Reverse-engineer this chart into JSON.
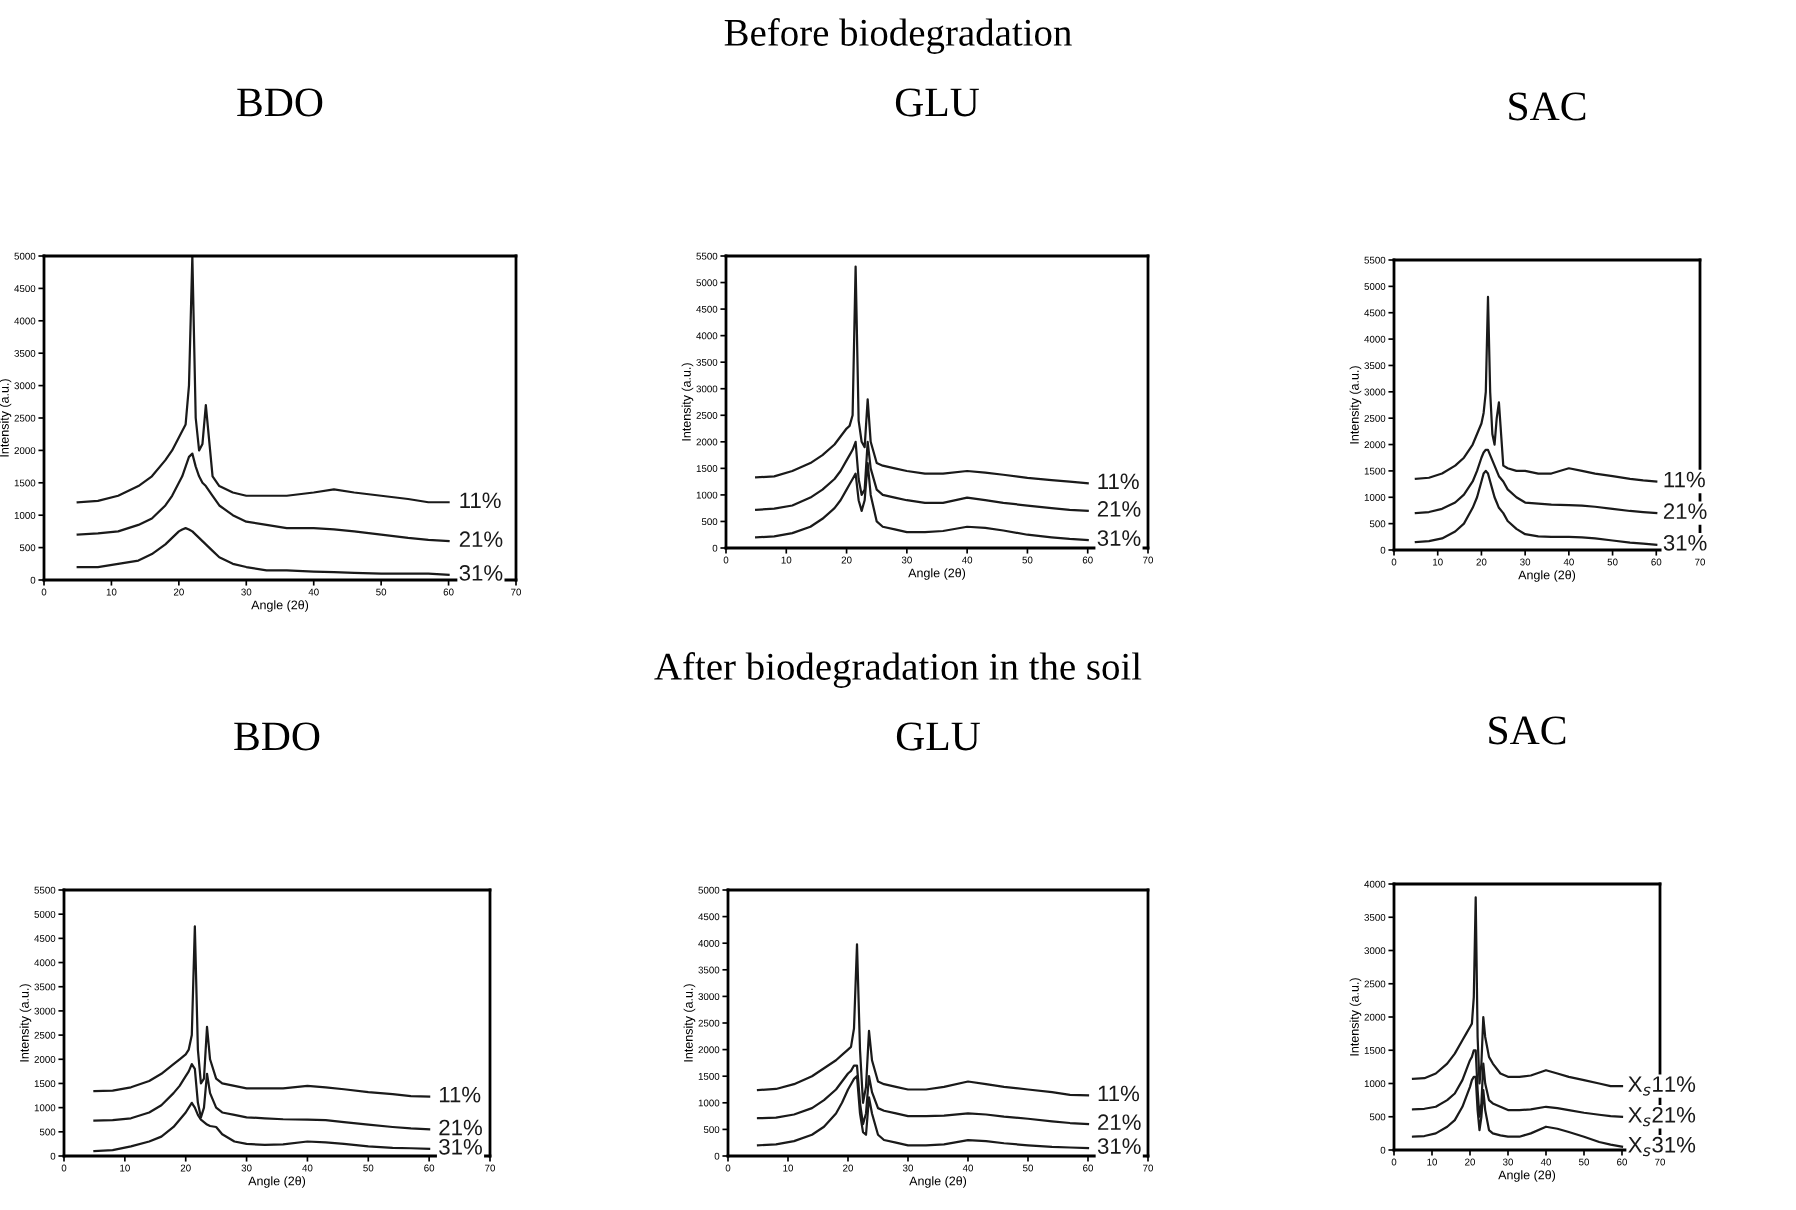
{
  "chart_data": [
    {
      "type": "line",
      "title": "BDO",
      "annotations": [
        "Before biodegradation"
      ],
      "xlabel": "Angle (2θ)",
      "ylabel": "Intensity (a.u.)",
      "xlim": [
        0,
        70
      ],
      "xticks": [
        0,
        10,
        20,
        30,
        40,
        50,
        60,
        70
      ],
      "ylim": [
        0,
        5000
      ],
      "yticks": [
        0,
        500,
        1000,
        1500,
        2000,
        2500,
        3000,
        3500,
        4000,
        4500,
        5000
      ],
      "x": [
        5,
        8,
        11,
        14,
        16,
        18,
        19,
        20,
        20.5,
        21,
        21.5,
        22,
        22.5,
        23,
        23.5,
        24,
        25,
        26,
        28,
        30,
        33,
        36,
        40,
        43,
        46,
        50,
        54,
        57,
        60
      ],
      "series": [
        {
          "name": "11%",
          "color": "#1a1a1a",
          "values": [
            1200,
            1220,
            1300,
            1450,
            1600,
            1850,
            2000,
            2200,
            2300,
            2400,
            3000,
            5000,
            2500,
            2000,
            2100,
            2700,
            1600,
            1450,
            1350,
            1300,
            1300,
            1300,
            1350,
            1400,
            1350,
            1300,
            1250,
            1200,
            1200
          ]
        },
        {
          "name": "21%",
          "color": "#1a1a1a",
          "values": [
            700,
            720,
            750,
            850,
            950,
            1150,
            1300,
            1500,
            1600,
            1750,
            1900,
            1950,
            1750,
            1600,
            1500,
            1450,
            1300,
            1150,
            1000,
            900,
            850,
            800,
            800,
            780,
            750,
            700,
            650,
            620,
            600
          ]
        },
        {
          "name": "31%",
          "color": "#1a1a1a",
          "values": [
            200,
            200,
            250,
            300,
            400,
            550,
            650,
            750,
            780,
            800,
            780,
            750,
            700,
            650,
            600,
            550,
            450,
            350,
            250,
            200,
            150,
            150,
            130,
            120,
            110,
            100,
            100,
            100,
            80
          ]
        }
      ]
    },
    {
      "type": "line",
      "title": "GLU",
      "xlabel": "Angle (2θ)",
      "ylabel": "Intensity (a.u.)",
      "xlim": [
        0,
        70
      ],
      "xticks": [
        0,
        10,
        20,
        30,
        40,
        50,
        60,
        70
      ],
      "ylim": [
        0,
        5500
      ],
      "yticks": [
        0,
        500,
        1000,
        1500,
        2000,
        2500,
        3000,
        3500,
        4000,
        4500,
        5000,
        5500
      ],
      "x": [
        5,
        8,
        11,
        14,
        16,
        18,
        19,
        20,
        20.5,
        21,
        21.5,
        22,
        22.5,
        23,
        23.5,
        24,
        25,
        26,
        28,
        30,
        33,
        36,
        40,
        43,
        46,
        50,
        54,
        57,
        60
      ],
      "series": [
        {
          "name": "11%",
          "color": "#1a1a1a",
          "values": [
            1330,
            1350,
            1450,
            1600,
            1750,
            1950,
            2100,
            2250,
            2300,
            2500,
            5300,
            2400,
            2000,
            1900,
            2800,
            2000,
            1600,
            1550,
            1500,
            1450,
            1400,
            1400,
            1450,
            1420,
            1380,
            1320,
            1280,
            1250,
            1220
          ]
        },
        {
          "name": "21%",
          "color": "#1a1a1a",
          "values": [
            720,
            740,
            800,
            950,
            1100,
            1300,
            1450,
            1650,
            1750,
            1850,
            2000,
            1300,
            1000,
            1100,
            2000,
            1500,
            1100,
            1000,
            950,
            900,
            850,
            850,
            950,
            900,
            850,
            800,
            750,
            720,
            700
          ]
        },
        {
          "name": "31%",
          "color": "#1a1a1a",
          "values": [
            200,
            220,
            280,
            400,
            550,
            750,
            900,
            1100,
            1200,
            1300,
            1400,
            900,
            700,
            900,
            1600,
            1000,
            500,
            400,
            350,
            300,
            300,
            320,
            400,
            380,
            330,
            250,
            200,
            170,
            150
          ]
        }
      ]
    },
    {
      "type": "line",
      "title": "SAC",
      "xlabel": "Angle (2θ)",
      "ylabel": "Intensity (a.u.)",
      "xlim": [
        0,
        70
      ],
      "xticks": [
        0,
        10,
        20,
        30,
        40,
        50,
        60,
        70
      ],
      "ylim": [
        0,
        5500
      ],
      "yticks": [
        0,
        500,
        1000,
        1500,
        2000,
        2500,
        3000,
        3500,
        4000,
        4500,
        5000,
        5500
      ],
      "x": [
        5,
        8,
        11,
        14,
        16,
        18,
        19,
        20,
        20.5,
        21,
        21.5,
        22,
        22.5,
        23,
        23.5,
        24,
        25,
        26,
        28,
        30,
        33,
        36,
        40,
        43,
        46,
        50,
        54,
        57,
        60
      ],
      "series": [
        {
          "name": "11%",
          "color": "#1a1a1a",
          "values": [
            1350,
            1370,
            1450,
            1600,
            1750,
            2000,
            2200,
            2400,
            2600,
            3000,
            4800,
            3000,
            2200,
            2000,
            2500,
            2800,
            1600,
            1550,
            1500,
            1500,
            1450,
            1450,
            1550,
            1500,
            1450,
            1400,
            1350,
            1320,
            1300
          ]
        },
        {
          "name": "21%",
          "color": "#1a1a1a",
          "values": [
            700,
            720,
            780,
            900,
            1050,
            1300,
            1500,
            1750,
            1850,
            1900,
            1900,
            1800,
            1700,
            1600,
            1500,
            1400,
            1300,
            1150,
            1000,
            900,
            880,
            860,
            850,
            840,
            820,
            780,
            740,
            720,
            700
          ]
        },
        {
          "name": "31%",
          "color": "#1a1a1a",
          "values": [
            150,
            170,
            220,
            350,
            500,
            800,
            1000,
            1300,
            1450,
            1500,
            1450,
            1300,
            1150,
            1000,
            900,
            800,
            700,
            550,
            400,
            300,
            260,
            250,
            250,
            240,
            220,
            180,
            140,
            120,
            100
          ]
        }
      ]
    },
    {
      "type": "line",
      "title": "BDO",
      "annotations": [
        "After biodegradation in the soil"
      ],
      "xlabel": "Angle (2θ)",
      "ylabel": "Intensity (a.u.)",
      "xlim": [
        0,
        70
      ],
      "xticks": [
        0,
        10,
        20,
        30,
        40,
        50,
        60,
        70
      ],
      "ylim": [
        0,
        5500
      ],
      "yticks": [
        0,
        500,
        1000,
        1500,
        2000,
        2500,
        3000,
        3500,
        4000,
        4500,
        5000,
        5500
      ],
      "x": [
        5,
        8,
        11,
        14,
        16,
        18,
        19,
        20,
        20.5,
        21,
        21.5,
        22,
        22.5,
        23,
        23.5,
        24,
        25,
        26,
        28,
        30,
        33,
        36,
        40,
        43,
        46,
        50,
        54,
        57,
        60
      ],
      "series": [
        {
          "name": "11%",
          "color": "#1a1a1a",
          "values": [
            1340,
            1350,
            1420,
            1550,
            1700,
            1900,
            2000,
            2100,
            2200,
            2500,
            4750,
            2200,
            1500,
            1600,
            2670,
            2000,
            1600,
            1500,
            1450,
            1400,
            1400,
            1400,
            1450,
            1420,
            1380,
            1320,
            1280,
            1240,
            1230
          ]
        },
        {
          "name": "21%",
          "color": "#1a1a1a",
          "values": [
            730,
            740,
            780,
            900,
            1050,
            1300,
            1450,
            1650,
            1750,
            1900,
            1800,
            1100,
            800,
            1000,
            1700,
            1300,
            1000,
            900,
            850,
            800,
            780,
            760,
            750,
            740,
            700,
            650,
            600,
            570,
            550
          ]
        },
        {
          "name": "31%",
          "color": "#1a1a1a",
          "values": [
            100,
            120,
            200,
            300,
            400,
            600,
            750,
            900,
            1000,
            1100,
            1000,
            850,
            750,
            700,
            650,
            620,
            600,
            450,
            300,
            250,
            230,
            240,
            300,
            280,
            250,
            200,
            170,
            160,
            150
          ]
        }
      ]
    },
    {
      "type": "line",
      "title": "GLU",
      "xlabel": "Angle (2θ)",
      "ylabel": "Intensity (a.u.)",
      "xlim": [
        0,
        70
      ],
      "xticks": [
        0,
        10,
        20,
        30,
        40,
        50,
        60,
        70
      ],
      "ylim": [
        0,
        5000
      ],
      "yticks": [
        0,
        500,
        1000,
        1500,
        2000,
        2500,
        3000,
        3500,
        4000,
        4500,
        5000
      ],
      "x": [
        5,
        8,
        11,
        14,
        16,
        18,
        19,
        20,
        20.5,
        21,
        21.5,
        22,
        22.5,
        23,
        23.5,
        24,
        25,
        26,
        28,
        30,
        33,
        36,
        40,
        43,
        46,
        50,
        54,
        57,
        60
      ],
      "series": [
        {
          "name": "11%",
          "color": "#1a1a1a",
          "values": [
            1240,
            1260,
            1350,
            1500,
            1650,
            1800,
            1900,
            2000,
            2050,
            2400,
            3980,
            2000,
            1000,
            1300,
            2350,
            1800,
            1400,
            1350,
            1300,
            1250,
            1250,
            1300,
            1400,
            1350,
            1300,
            1250,
            1200,
            1150,
            1140
          ]
        },
        {
          "name": "21%",
          "color": "#1a1a1a",
          "values": [
            710,
            720,
            780,
            900,
            1050,
            1250,
            1400,
            1550,
            1600,
            1700,
            1700,
            1000,
            600,
            800,
            1500,
            1200,
            900,
            850,
            800,
            750,
            750,
            760,
            800,
            780,
            740,
            700,
            650,
            620,
            600
          ]
        },
        {
          "name": "31%",
          "color": "#1a1a1a",
          "values": [
            200,
            220,
            280,
            400,
            550,
            800,
            1000,
            1250,
            1350,
            1450,
            1500,
            800,
            450,
            400,
            1100,
            800,
            400,
            300,
            250,
            200,
            200,
            220,
            300,
            280,
            240,
            200,
            170,
            160,
            150
          ]
        }
      ]
    },
    {
      "type": "line",
      "title": "SAC",
      "xlabel": "Angle (2θ)",
      "ylabel": "Intensity (a.u.)",
      "xlim": [
        0,
        70
      ],
      "xticks": [
        0,
        10,
        20,
        30,
        40,
        50,
        60,
        70
      ],
      "ylim": [
        0,
        4000
      ],
      "yticks": [
        0,
        500,
        1000,
        1500,
        2000,
        2500,
        3000,
        3500,
        4000
      ],
      "x": [
        5,
        8,
        11,
        14,
        16,
        18,
        19,
        20,
        20.5,
        21,
        21.5,
        22,
        22.5,
        23,
        23.5,
        24,
        25,
        26,
        28,
        30,
        33,
        36,
        40,
        43,
        46,
        50,
        54,
        57,
        60
      ],
      "series": [
        {
          "name": "X$_{s}$11%",
          "color": "#1a1a1a",
          "values": [
            1070,
            1080,
            1150,
            1300,
            1450,
            1650,
            1750,
            1850,
            1900,
            2300,
            3800,
            1700,
            1000,
            1300,
            2000,
            1700,
            1400,
            1300,
            1150,
            1100,
            1100,
            1120,
            1200,
            1150,
            1100,
            1050,
            1000,
            960,
            960
          ]
        },
        {
          "name": "X$_{s}$21%",
          "color": "#1a1a1a",
          "values": [
            610,
            620,
            650,
            750,
            850,
            1050,
            1200,
            1350,
            1400,
            1500,
            1500,
            900,
            500,
            700,
            1300,
            1000,
            750,
            700,
            650,
            600,
            600,
            610,
            650,
            630,
            600,
            560,
            530,
            510,
            500
          ]
        },
        {
          "name": "X$_{s}$31%",
          "color": "#1a1a1a",
          "values": [
            200,
            210,
            250,
            350,
            450,
            650,
            800,
            950,
            1050,
            1100,
            1100,
            600,
            300,
            500,
            900,
            600,
            300,
            250,
            220,
            200,
            200,
            250,
            350,
            320,
            270,
            200,
            120,
            80,
            50
          ]
        }
      ]
    }
  ]
}
